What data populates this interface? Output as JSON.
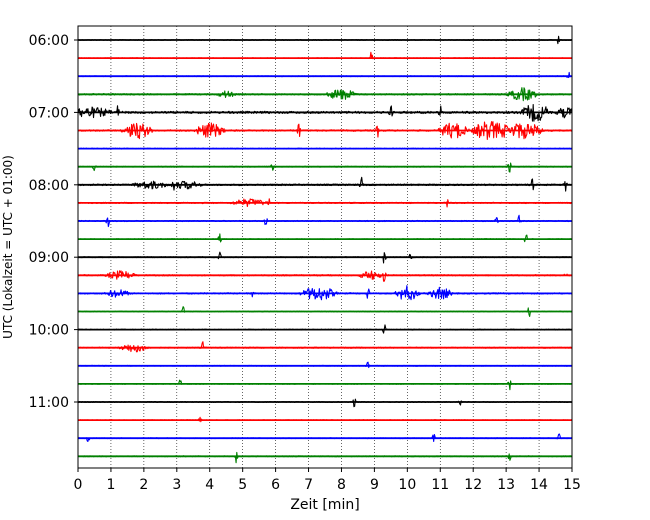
{
  "chart_data": {
    "type": "line",
    "title": "",
    "xlabel": "Zeit  [min]",
    "ylabel": "UTC (Lokalzeit = UTC + 01:00)",
    "xlim": [
      0,
      15
    ],
    "x_ticks": [
      "0",
      "1",
      "2",
      "3",
      "4",
      "5",
      "6",
      "7",
      "8",
      "9",
      "10",
      "11",
      "12",
      "13",
      "14",
      "15"
    ],
    "y_ticks": [
      "06:00",
      "07:00",
      "08:00",
      "09:00",
      "10:00",
      "11:00"
    ],
    "grid": {
      "x": true,
      "y": false,
      "style": "dotted"
    },
    "trace_colors": [
      "#000000",
      "#ff0000",
      "#0000ff",
      "#008000"
    ],
    "trace_interval_min": 15,
    "series": [
      {
        "start": "06:00",
        "color": "#000000",
        "events": [
          [
            14.6,
            1.0
          ]
        ],
        "bursts": [],
        "noise": 0.25
      },
      {
        "start": "06:15",
        "color": "#ff0000",
        "events": [
          [
            8.9,
            1.4
          ]
        ],
        "bursts": [],
        "noise": 0.2
      },
      {
        "start": "06:30",
        "color": "#0000ff",
        "events": [
          [
            14.9,
            0.8
          ]
        ],
        "bursts": [],
        "noise": 0.25
      },
      {
        "start": "06:45",
        "color": "#008000",
        "events": [],
        "bursts": [
          [
            4.5,
            0.3,
            0.6
          ],
          [
            8.0,
            0.5,
            1.0
          ],
          [
            13.5,
            0.5,
            1.2
          ]
        ],
        "noise": 0.45
      },
      {
        "start": "07:00",
        "color": "#000000",
        "events": [
          [
            1.2,
            1.0
          ],
          [
            9.5,
            1.2
          ],
          [
            11.0,
            1.2
          ]
        ],
        "bursts": [
          [
            0.3,
            0.8,
            0.9
          ],
          [
            13.9,
            0.5,
            1.6
          ],
          [
            14.8,
            0.3,
            0.9
          ]
        ],
        "noise": 0.7
      },
      {
        "start": "07:15",
        "color": "#ff0000",
        "events": [
          [
            6.7,
            1.6
          ],
          [
            9.1,
            1.0
          ]
        ],
        "bursts": [
          [
            1.8,
            0.5,
            1.5
          ],
          [
            4.0,
            0.5,
            1.4
          ],
          [
            11.4,
            0.5,
            1.5
          ],
          [
            12.5,
            0.6,
            1.8
          ],
          [
            13.5,
            0.7,
            1.5
          ]
        ],
        "noise": 0.5
      },
      {
        "start": "07:30",
        "color": "#0000ff",
        "events": [],
        "bursts": [],
        "noise": 0.3
      },
      {
        "start": "07:45",
        "color": "#008000",
        "events": [
          [
            0.5,
            1.0
          ],
          [
            5.9,
            0.9
          ],
          [
            13.1,
            1.3
          ]
        ],
        "bursts": [],
        "noise": 0.3
      },
      {
        "start": "08:00",
        "color": "#000000",
        "events": [
          [
            2.9,
            1.2
          ],
          [
            8.6,
            1.3
          ],
          [
            13.8,
            1.1
          ],
          [
            14.8,
            1.0
          ]
        ],
        "bursts": [
          [
            2.2,
            0.6,
            0.7
          ],
          [
            3.3,
            0.5,
            0.7
          ]
        ],
        "noise": 0.5
      },
      {
        "start": "08:15",
        "color": "#ff0000",
        "events": [
          [
            5.8,
            1.2
          ],
          [
            11.2,
            1.0
          ]
        ],
        "bursts": [
          [
            5.2,
            0.6,
            0.7
          ]
        ],
        "noise": 0.4
      },
      {
        "start": "08:30",
        "color": "#0000ff",
        "events": [
          [
            0.9,
            1.2
          ],
          [
            5.7,
            1.1
          ],
          [
            12.7,
            1.3
          ],
          [
            13.4,
            1.0
          ]
        ],
        "bursts": [],
        "noise": 0.35
      },
      {
        "start": "08:45",
        "color": "#008000",
        "events": [
          [
            4.3,
            0.9
          ],
          [
            13.6,
            1.0
          ]
        ],
        "bursts": [],
        "noise": 0.25
      },
      {
        "start": "09:00",
        "color": "#000000",
        "events": [
          [
            4.3,
            1.0
          ],
          [
            9.3,
            1.5
          ],
          [
            10.1,
            1.0
          ]
        ],
        "bursts": [],
        "noise": 0.3
      },
      {
        "start": "09:15",
        "color": "#ff0000",
        "events": [
          [
            9.3,
            1.1
          ],
          [
            14.8,
            0.9
          ]
        ],
        "bursts": [
          [
            1.3,
            0.5,
            0.8
          ],
          [
            8.9,
            0.4,
            0.8
          ]
        ],
        "noise": 0.4
      },
      {
        "start": "09:30",
        "color": "#0000ff",
        "events": [
          [
            5.3,
            0.8
          ],
          [
            8.8,
            1.1
          ]
        ],
        "bursts": [
          [
            1.2,
            0.4,
            0.7
          ],
          [
            7.3,
            0.6,
            1.3
          ],
          [
            10.0,
            0.4,
            1.4
          ],
          [
            11.0,
            0.4,
            1.1
          ]
        ],
        "noise": 0.45
      },
      {
        "start": "09:45",
        "color": "#008000",
        "events": [
          [
            3.2,
            0.9
          ],
          [
            13.7,
            1.0
          ]
        ],
        "bursts": [],
        "noise": 0.25
      },
      {
        "start": "10:00",
        "color": "#000000",
        "events": [
          [
            9.3,
            1.1
          ]
        ],
        "bursts": [],
        "noise": 0.3
      },
      {
        "start": "10:15",
        "color": "#ff0000",
        "events": [
          [
            3.8,
            1.2
          ]
        ],
        "bursts": [
          [
            1.7,
            0.5,
            0.8
          ]
        ],
        "noise": 0.35
      },
      {
        "start": "10:30",
        "color": "#0000ff",
        "events": [
          [
            8.8,
            0.8
          ]
        ],
        "bursts": [],
        "noise": 0.25
      },
      {
        "start": "10:45",
        "color": "#008000",
        "events": [
          [
            3.1,
            0.9
          ],
          [
            13.1,
            1.1
          ]
        ],
        "bursts": [],
        "noise": 0.25
      },
      {
        "start": "11:00",
        "color": "#000000",
        "events": [
          [
            8.4,
            1.0
          ],
          [
            11.6,
            0.8
          ]
        ],
        "bursts": [],
        "noise": 0.3
      },
      {
        "start": "11:15",
        "color": "#ff0000",
        "events": [
          [
            3.7,
            1.0
          ]
        ],
        "bursts": [],
        "noise": 0.25
      },
      {
        "start": "11:30",
        "color": "#0000ff",
        "events": [
          [
            0.3,
            0.9
          ],
          [
            10.8,
            0.8
          ],
          [
            14.6,
            0.9
          ]
        ],
        "bursts": [],
        "noise": 0.25
      },
      {
        "start": "11:45",
        "color": "#008000",
        "events": [
          [
            4.8,
            1.1
          ],
          [
            13.1,
            1.0
          ]
        ],
        "bursts": [],
        "noise": 0.3
      }
    ]
  }
}
